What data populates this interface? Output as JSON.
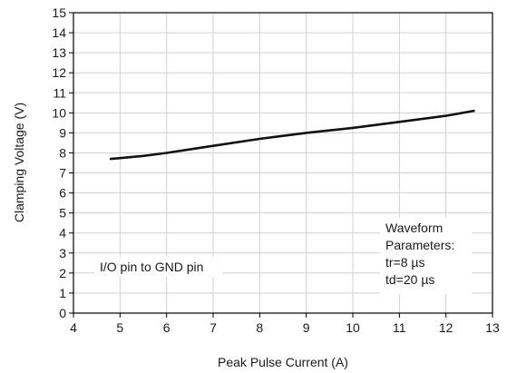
{
  "chart_data": {
    "type": "line",
    "title": "",
    "xlabel": "Peak Pulse Current (A)",
    "ylabel": "Clamping Voltage (V)",
    "xlim": [
      4,
      13
    ],
    "ylim": [
      0,
      15
    ],
    "xticks": [
      4,
      5,
      6,
      7,
      8,
      9,
      10,
      11,
      12,
      13
    ],
    "yticks": [
      0,
      1,
      2,
      3,
      4,
      5,
      6,
      7,
      8,
      9,
      10,
      11,
      12,
      13,
      14,
      15
    ],
    "grid": true,
    "series": [
      {
        "x": [
          4.8,
          5.5,
          6.0,
          7.0,
          8.0,
          8.5,
          9.0,
          10.0,
          11.0,
          12.0,
          12.6
        ],
        "y": [
          7.7,
          7.85,
          8.0,
          8.35,
          8.7,
          8.85,
          9.0,
          9.25,
          9.55,
          9.85,
          10.1
        ]
      }
    ],
    "annotations": [
      {
        "id": "left",
        "lines": [
          "I/O pin to GND pin"
        ]
      },
      {
        "id": "right",
        "lines": [
          "Waveform",
          "Parameters:",
          "tr=8 µs",
          "td=20 µs"
        ]
      }
    ]
  }
}
